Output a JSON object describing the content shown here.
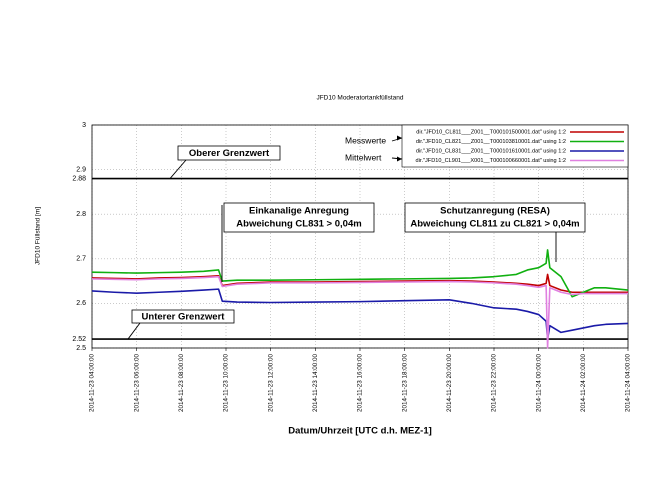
{
  "chart_data": {
    "type": "line",
    "title": "JFD10 Moderatortankfüllstand",
    "y_label": "JFD10 Füllstand [m]",
    "x_label": "Datum/Uhrzeit [UTC  d.h. MEZ-1]",
    "x": [
      "2014-11-23 04:00:00",
      "2014-11-23 05:00:00",
      "2014-11-23 06:00:00",
      "2014-11-23 07:00:00",
      "2014-11-23 08:00:00",
      "2014-11-23 09:00:00",
      "2014-11-23 09:40:00",
      "2014-11-23 09:50:00",
      "2014-11-23 10:30:00",
      "2014-11-23 12:00:00",
      "2014-11-23 14:00:00",
      "2014-11-23 16:00:00",
      "2014-11-23 18:00:00",
      "2014-11-23 20:00:00",
      "2014-11-23 21:00:00",
      "2014-11-23 22:00:00",
      "2014-11-23 23:00:00",
      "2014-11-23 23:30:00",
      "2014-11-24 00:00:00",
      "2014-11-24 00:20:00",
      "2014-11-24 00:24:00",
      "2014-11-24 00:30:00",
      "2014-11-24 01:00:00",
      "2014-11-24 01:30:00",
      "2014-11-24 02:00:00",
      "2014-11-24 02:30:00",
      "2014-11-24 03:00:00",
      "2014-11-24 04:00:00"
    ],
    "series": [
      {
        "name": "dir.\"JFD10_CL811___Z001__T000101500001.dat\" using 1:2",
        "color": "#c00000",
        "values": [
          2.657,
          2.656,
          2.655,
          2.657,
          2.658,
          2.66,
          2.662,
          2.64,
          2.645,
          2.648,
          2.648,
          2.649,
          2.65,
          2.651,
          2.65,
          2.648,
          2.645,
          2.643,
          2.64,
          2.645,
          2.665,
          2.64,
          2.63,
          2.625,
          2.625,
          2.625,
          2.625,
          2.625
        ]
      },
      {
        "name": "dir.\"JFD10_CL821___Z001__T000103810001.dat\" using 1:2",
        "color": "#10b010",
        "values": [
          2.67,
          2.669,
          2.668,
          2.669,
          2.67,
          2.672,
          2.675,
          2.65,
          2.652,
          2.652,
          2.653,
          2.654,
          2.655,
          2.656,
          2.657,
          2.66,
          2.665,
          2.675,
          2.68,
          2.69,
          2.72,
          2.68,
          2.66,
          2.615,
          2.625,
          2.635,
          2.635,
          2.63
        ]
      },
      {
        "name": "dir.\"JFD10_CL831___Z001__T000101610001.dat\" using 1:2",
        "color": "#1a1aa8",
        "values": [
          2.628,
          2.625,
          2.623,
          2.625,
          2.627,
          2.63,
          2.632,
          2.605,
          2.603,
          2.602,
          2.603,
          2.604,
          2.606,
          2.608,
          2.6,
          2.59,
          2.587,
          2.582,
          2.575,
          2.56,
          2.52,
          2.55,
          2.535,
          2.54,
          2.545,
          2.55,
          2.553,
          2.555
        ]
      },
      {
        "name": "dir.\"JFD10_CL901___X001__T000100660001.dat\" using 1:2",
        "color": "#e080e0",
        "values": [
          2.655,
          2.654,
          2.653,
          2.655,
          2.656,
          2.658,
          2.66,
          2.638,
          2.643,
          2.646,
          2.646,
          2.647,
          2.648,
          2.649,
          2.648,
          2.646,
          2.643,
          2.64,
          2.636,
          2.64,
          2.5,
          2.635,
          2.625,
          2.62,
          2.622,
          2.622,
          2.622,
          2.622
        ]
      }
    ],
    "xlim": [
      "2014-11-23 04:00:00",
      "2014-11-24 04:00:00"
    ],
    "xticks": [
      "2014-11-23 04:00:00",
      "2014-11-23 06:00:00",
      "2014-11-23 08:00:00",
      "2014-11-23 10:00:00",
      "2014-11-23 12:00:00",
      "2014-11-23 14:00:00",
      "2014-11-23 16:00:00",
      "2014-11-23 18:00:00",
      "2014-11-23 20:00:00",
      "2014-11-23 22:00:00",
      "2014-11-24 00:00:00",
      "2014-11-24 02:00:00",
      "2014-11-24 04:00:00"
    ],
    "ylim": [
      2.5,
      3
    ],
    "yticks": [
      2.5,
      2.52,
      2.6,
      2.7,
      2.8,
      2.88,
      2.9,
      3
    ],
    "grid": true,
    "legend": "upper right",
    "hlines": [
      {
        "value": 2.88,
        "label": "Oberer Grenzwert"
      },
      {
        "value": 2.52,
        "label": "Unterer Grenzwert"
      }
    ],
    "legend_notes": [
      "Messwerte",
      "Mittelwert"
    ],
    "annotations": [
      {
        "lines": [
          "Einkanalige Anregung",
          "Abweichung CL831 > 0,04m"
        ]
      },
      {
        "lines": [
          "Schutzanregung (RESA)",
          "Abweichung CL811 zu CL821 > 0,04m"
        ]
      }
    ]
  }
}
